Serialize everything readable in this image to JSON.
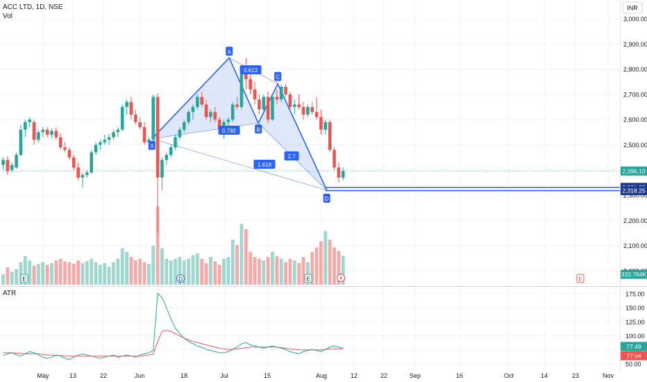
{
  "header": {
    "title": "ACC LTD, 1D, NSE",
    "vol_label": "Vol",
    "currency": "INR"
  },
  "atr_panel": {
    "label": "ATR"
  },
  "colors": {
    "up": "#26a69a",
    "down": "#ef5350",
    "pattern": "#2962ff",
    "pattern_fill": "#c5d3f6",
    "atr": "#26a69a",
    "atr_ma": "#ef5350"
  },
  "badges": {
    "last_price": "2,396.10",
    "target_1": "2,331.25",
    "target_2": "2,318.25",
    "volume": "332.764K",
    "atr_value": "77.49",
    "atr_ma_value": "77.04"
  },
  "pattern": {
    "points": [
      {
        "label": "X",
        "date": "2025-06-20",
        "price": 2524
      },
      {
        "label": "A",
        "date": "2025-07-01",
        "price": 2845
      },
      {
        "label": "B",
        "date": "2025-07-10",
        "price": 2586
      },
      {
        "label": "C",
        "date": "2025-07-17",
        "price": 2742
      },
      {
        "label": "D",
        "date": "2025-08-01",
        "price": 2320
      }
    ],
    "ratios": [
      {
        "text": "0.613",
        "at": "AB"
      },
      {
        "text": "0.792",
        "at": "XB"
      },
      {
        "text": "2.7",
        "at": "CD"
      },
      {
        "text": "1.618",
        "at": "XD"
      }
    ]
  },
  "events": [
    "E",
    "D",
    "E",
    "E"
  ],
  "chart_data": [
    {
      "type": "candlestick",
      "title": "ACC LTD, 1D, NSE",
      "x_tick_labels": [
        "May",
        "13",
        "22",
        "Jun",
        "18",
        "Jul",
        "15",
        "Aug",
        "12",
        "22",
        "Sep",
        "16",
        "Oct",
        "14",
        "23",
        "Nov"
      ],
      "y_tick_labels": [
        "3,000.00",
        "2,900.00",
        "2,800.00",
        "2,700.00",
        "2,600.00",
        "2,500.00",
        "2,400.00",
        "2,300.00",
        "2,200.00",
        "2,100.00",
        "2,000.00"
      ],
      "ylim": [
        1990,
        3030
      ],
      "ohlc": [
        [
          2420,
          2450,
          2400,
          2440
        ],
        [
          2440,
          2455,
          2380,
          2395
        ],
        [
          2400,
          2430,
          2390,
          2420
        ],
        [
          2410,
          2470,
          2405,
          2460
        ],
        [
          2460,
          2580,
          2455,
          2560
        ],
        [
          2560,
          2600,
          2530,
          2590
        ],
        [
          2590,
          2610,
          2570,
          2600
        ],
        [
          2590,
          2600,
          2500,
          2520
        ],
        [
          2520,
          2560,
          2510,
          2550
        ],
        [
          2550,
          2570,
          2530,
          2560
        ],
        [
          2560,
          2570,
          2530,
          2540
        ],
        [
          2540,
          2565,
          2525,
          2555
        ],
        [
          2555,
          2570,
          2520,
          2530
        ],
        [
          2530,
          2545,
          2480,
          2490
        ],
        [
          2490,
          2510,
          2470,
          2480
        ],
        [
          2480,
          2490,
          2440,
          2450
        ],
        [
          2450,
          2460,
          2400,
          2410
        ],
        [
          2410,
          2430,
          2360,
          2370
        ],
        [
          2370,
          2390,
          2330,
          2380
        ],
        [
          2380,
          2400,
          2370,
          2390
        ],
        [
          2390,
          2480,
          2385,
          2470
        ],
        [
          2470,
          2510,
          2460,
          2500
        ],
        [
          2500,
          2520,
          2480,
          2510
        ],
        [
          2510,
          2540,
          2500,
          2520
        ],
        [
          2520,
          2545,
          2500,
          2530
        ],
        [
          2530,
          2560,
          2520,
          2550
        ],
        [
          2550,
          2570,
          2530,
          2560
        ],
        [
          2560,
          2660,
          2555,
          2650
        ],
        [
          2650,
          2680,
          2620,
          2670
        ],
        [
          2670,
          2690,
          2600,
          2620
        ],
        [
          2620,
          2640,
          2580,
          2590
        ],
        [
          2590,
          2610,
          2560,
          2570
        ],
        [
          2570,
          2590,
          2500,
          2510
        ],
        [
          2510,
          2530,
          2480,
          2520
        ],
        [
          2520,
          2700,
          2515,
          2690
        ],
        [
          2690,
          2705,
          2150,
          2370
        ],
        [
          2370,
          2450,
          2320,
          2440
        ],
        [
          2440,
          2470,
          2420,
          2460
        ],
        [
          2460,
          2500,
          2450,
          2490
        ],
        [
          2490,
          2540,
          2480,
          2530
        ],
        [
          2530,
          2570,
          2520,
          2560
        ],
        [
          2560,
          2600,
          2550,
          2590
        ],
        [
          2590,
          2640,
          2580,
          2630
        ],
        [
          2630,
          2660,
          2600,
          2650
        ],
        [
          2650,
          2700,
          2640,
          2690
        ],
        [
          2690,
          2710,
          2650,
          2660
        ],
        [
          2660,
          2680,
          2600,
          2610
        ],
        [
          2610,
          2640,
          2590,
          2630
        ],
        [
          2630,
          2650,
          2590,
          2600
        ],
        [
          2600,
          2610,
          2540,
          2560
        ],
        [
          2560,
          2600,
          2524,
          2590
        ],
        [
          2590,
          2610,
          2560,
          2600
        ],
        [
          2600,
          2670,
          2590,
          2660
        ],
        [
          2660,
          2690,
          2640,
          2650
        ],
        [
          2650,
          2800,
          2640,
          2780
        ],
        [
          2780,
          2845,
          2720,
          2760
        ],
        [
          2760,
          2800,
          2700,
          2720
        ],
        [
          2720,
          2750,
          2660,
          2680
        ],
        [
          2680,
          2700,
          2620,
          2640
        ],
        [
          2640,
          2700,
          2630,
          2690
        ],
        [
          2690,
          2710,
          2586,
          2600
        ],
        [
          2600,
          2700,
          2595,
          2690
        ],
        [
          2690,
          2720,
          2660,
          2680
        ],
        [
          2680,
          2740,
          2670,
          2730
        ],
        [
          2730,
          2742,
          2690,
          2700
        ],
        [
          2700,
          2710,
          2640,
          2650
        ],
        [
          2650,
          2680,
          2620,
          2660
        ],
        [
          2660,
          2700,
          2640,
          2650
        ],
        [
          2650,
          2670,
          2600,
          2620
        ],
        [
          2620,
          2660,
          2610,
          2650
        ],
        [
          2650,
          2670,
          2620,
          2630
        ],
        [
          2630,
          2690,
          2600,
          2610
        ],
        [
          2610,
          2640,
          2540,
          2560
        ],
        [
          2560,
          2600,
          2540,
          2590
        ],
        [
          2590,
          2600,
          2470,
          2480
        ],
        [
          2480,
          2490,
          2400,
          2410
        ],
        [
          2410,
          2430,
          2350,
          2370
        ],
        [
          2370,
          2410,
          2360,
          2396
        ]
      ],
      "volume_k": [
        120,
        200,
        150,
        180,
        260,
        330,
        280,
        220,
        240,
        260,
        230,
        250,
        280,
        300,
        270,
        260,
        240,
        280,
        250,
        270,
        300,
        260,
        230,
        250,
        210,
        260,
        300,
        420,
        380,
        320,
        280,
        300,
        260,
        240,
        450,
        900,
        420,
        300,
        280,
        300,
        320,
        280,
        300,
        340,
        360,
        300,
        250,
        320,
        270,
        230,
        300,
        320,
        520,
        460,
        700,
        640,
        380,
        320,
        300,
        280,
        320,
        380,
        330,
        300,
        260,
        300,
        280,
        250,
        320,
        260,
        380,
        430,
        500,
        620,
        520,
        430,
        390,
        333
      ],
      "atr": [
        65,
        68,
        70,
        66,
        64,
        68,
        72,
        70,
        66,
        62,
        60,
        62,
        66,
        64,
        60,
        58,
        62,
        66,
        68,
        66,
        64,
        62,
        60,
        62,
        64,
        66,
        62,
        64,
        66,
        64,
        62,
        66,
        68,
        70,
        74,
        176,
        168,
        150,
        130,
        114,
        104,
        96,
        90,
        86,
        82,
        80,
        76,
        74,
        72,
        70,
        70,
        72,
        76,
        80,
        86,
        88,
        84,
        82,
        80,
        78,
        80,
        82,
        80,
        78,
        76,
        72,
        70,
        68,
        72,
        74,
        76,
        74,
        72,
        76,
        80,
        82,
        80,
        77.49
      ],
      "atr_ma": [
        70,
        70,
        70,
        69,
        69,
        68,
        68,
        68,
        68,
        67,
        66,
        66,
        65,
        65,
        64,
        64,
        64,
        64,
        64,
        64,
        64,
        64,
        64,
        64,
        64,
        64,
        64,
        64,
        64,
        64,
        64,
        64,
        65,
        66,
        68,
        90,
        108,
        110,
        108,
        104,
        100,
        96,
        93,
        90,
        88,
        86,
        84,
        82,
        80,
        78,
        77,
        76,
        76,
        77,
        78,
        79,
        80,
        80,
        80,
        80,
        80,
        80,
        80,
        79,
        78,
        77,
        76,
        75,
        75,
        75,
        75,
        75,
        75,
        76,
        77,
        77,
        77,
        77.04
      ],
      "atr_y_tick_labels": [
        "175.00",
        "150.00",
        "125.00",
        "100.00",
        "75.00",
        "50.00"
      ],
      "atr_ylim": [
        48,
        190
      ]
    }
  ]
}
